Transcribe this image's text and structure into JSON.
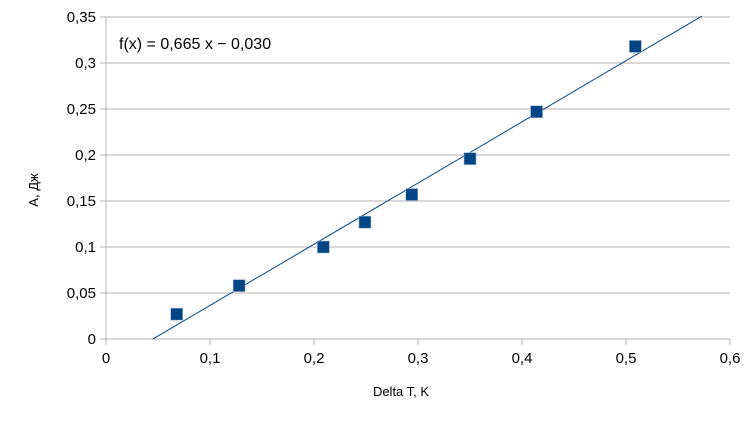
{
  "chart_data": {
    "type": "scatter",
    "xlabel": "Delta T, K",
    "ylabel": "A, Дж",
    "xlim": [
      0,
      0.6
    ],
    "ylim": [
      0,
      0.35
    ],
    "x_ticks": [
      "0",
      "0,1",
      "0,2",
      "0,3",
      "0,4",
      "0,5",
      "0,6"
    ],
    "y_ticks": [
      "0",
      "0,05",
      "0,1",
      "0,15",
      "0,2",
      "0,25",
      "0,3",
      "0,35"
    ],
    "grid": "horizontal",
    "points": [
      {
        "x": 0.068,
        "y": 0.027
      },
      {
        "x": 0.128,
        "y": 0.058
      },
      {
        "x": 0.209,
        "y": 0.1
      },
      {
        "x": 0.249,
        "y": 0.127
      },
      {
        "x": 0.294,
        "y": 0.157
      },
      {
        "x": 0.35,
        "y": 0.196
      },
      {
        "x": 0.414,
        "y": 0.247
      },
      {
        "x": 0.509,
        "y": 0.318
      }
    ],
    "trendline": {
      "slope": 0.665,
      "intercept": -0.03,
      "x_range": [
        0.045,
        0.573
      ]
    },
    "equation": "f(x) = 0,665 x − 0,030",
    "colors": {
      "marker": "#004586",
      "trendline": "#004586",
      "grid": "#b3b3b3",
      "axis": "#b3b3b3"
    }
  }
}
